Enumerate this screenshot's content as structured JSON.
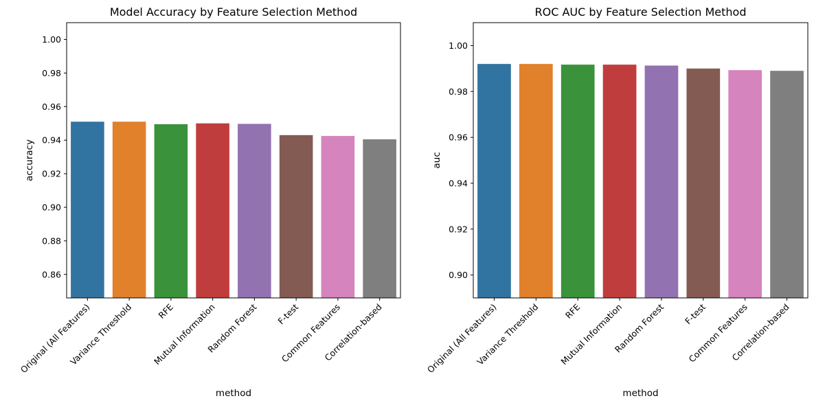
{
  "chart_data": [
    {
      "type": "bar",
      "title": "Model Accuracy by Feature Selection Method",
      "xlabel": "method",
      "ylabel": "accuracy",
      "ylim": [
        0.846,
        1.01
      ],
      "yticks": [
        "0.86",
        "0.88",
        "0.90",
        "0.92",
        "0.94",
        "0.96",
        "0.98",
        "1.00"
      ],
      "categories": [
        "Original (All Features)",
        "Variance Threshold",
        "RFE",
        "Mutual Information",
        "Random Forest",
        "F-test",
        "Common Features",
        "Correlation-based"
      ],
      "values": [
        0.951,
        0.951,
        0.9495,
        0.95,
        0.9497,
        0.943,
        0.9425,
        0.9405
      ],
      "colors": [
        "#3274a1",
        "#e1812c",
        "#3a923a",
        "#c03d3e",
        "#9372b2",
        "#845b53",
        "#d684bd",
        "#7f7f7f"
      ],
      "grid": false
    },
    {
      "type": "bar",
      "title": "ROC AUC by Feature Selection Method",
      "xlabel": "method",
      "ylabel": "auc",
      "ylim": [
        0.89,
        1.01
      ],
      "yticks": [
        "0.90",
        "0.92",
        "0.94",
        "0.96",
        "0.98",
        "1.00"
      ],
      "categories": [
        "Original (All Features)",
        "Variance Threshold",
        "RFE",
        "Mutual Information",
        "Random Forest",
        "F-test",
        "Common Features",
        "Correlation-based"
      ],
      "values": [
        0.992,
        0.992,
        0.9917,
        0.9917,
        0.9913,
        0.99,
        0.9893,
        0.989
      ],
      "colors": [
        "#3274a1",
        "#e1812c",
        "#3a923a",
        "#c03d3e",
        "#9372b2",
        "#845b53",
        "#d684bd",
        "#7f7f7f"
      ],
      "grid": false
    }
  ]
}
